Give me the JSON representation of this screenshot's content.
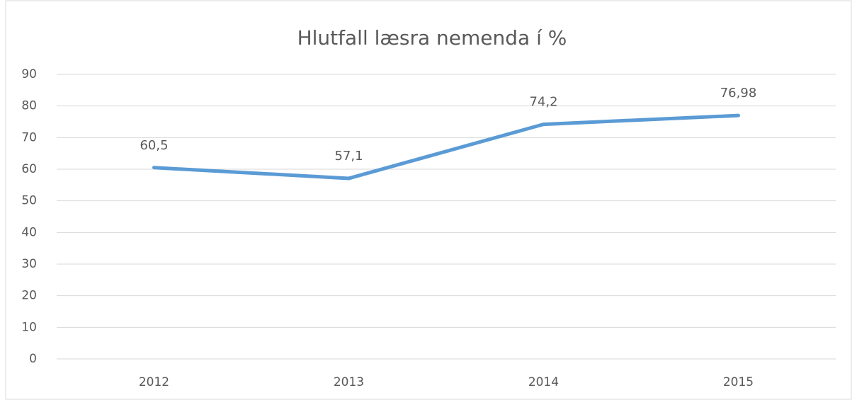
{
  "chart_data": {
    "type": "line",
    "title": "Hlutfall læsra nemenda í %",
    "categories": [
      "2012",
      "2013",
      "2014",
      "2015"
    ],
    "series": [
      {
        "name": "Hlutfall læsra nemenda",
        "color": "#5b9bd5",
        "values": [
          60.5,
          57.1,
          74.2,
          76.98
        ],
        "value_labels": [
          "60,5",
          "57,1",
          "74,2",
          "76,98"
        ]
      }
    ],
    "ylim": [
      0,
      90
    ],
    "yticks": [
      0,
      10,
      20,
      30,
      40,
      50,
      60,
      70,
      80,
      90
    ],
    "grid": true
  }
}
